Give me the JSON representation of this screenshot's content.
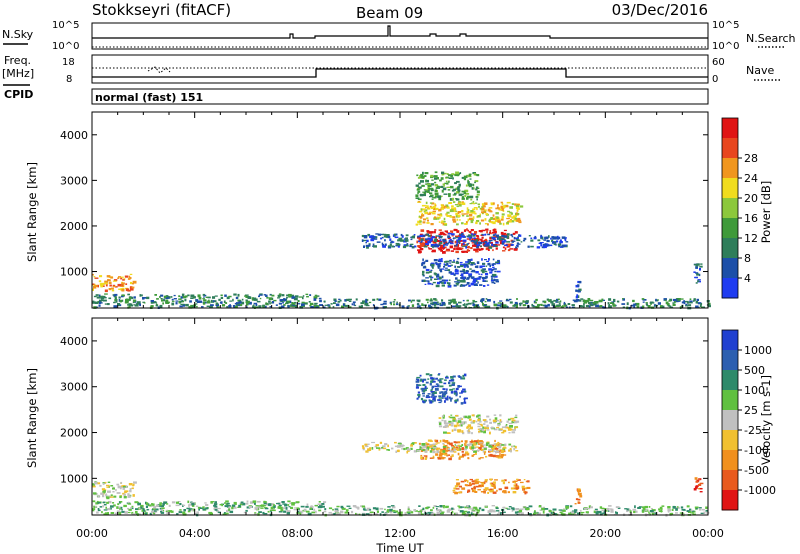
{
  "header": {
    "title": "Stokkseyri (fitACF)",
    "beam": "Beam 09",
    "date": "03/Dec/2016"
  },
  "top_panels": {
    "nsky_label": "N.Sky",
    "nsky_ticks": [
      "10^5",
      "10^0"
    ],
    "nsearch_label": "N.Search",
    "nsearch_ticks": [
      "10^5",
      "10^0"
    ],
    "freq_label": "Freq.",
    "freq_unit": "[MHz]",
    "freq_ticks": [
      "18",
      "8"
    ],
    "nave_label": "Nave",
    "nave_ticks": [
      "60",
      "0"
    ],
    "cpid_label": "CPID",
    "cpid_text": "normal (fast) 151"
  },
  "chart_data": [
    {
      "type": "heatmap",
      "name": "power",
      "ylabel": "Slant Range [km]",
      "y_ticks": [
        "1000",
        "2000",
        "3000",
        "4000"
      ],
      "ylim": [
        200,
        4500
      ],
      "xlim": [
        0,
        24
      ],
      "colorbar": {
        "label": "Power [dB]",
        "ticks": [
          "4",
          "8",
          "12",
          "16",
          "20",
          "24",
          "28"
        ],
        "colors": [
          "#1f3cf0",
          "#1c4fa8",
          "#2e7d5a",
          "#3f9a3a",
          "#8cc83c",
          "#f0dc1e",
          "#f0961e",
          "#e8461e",
          "#e01414"
        ]
      },
      "echo_regions": [
        {
          "t0": 0.0,
          "t1": 1.6,
          "r0": 600,
          "r1": 950,
          "level": 6
        },
        {
          "t0": 0.0,
          "t1": 9.0,
          "r0": 230,
          "r1": 520,
          "level": 2
        },
        {
          "t0": 9.0,
          "t1": 24.0,
          "r0": 220,
          "r1": 420,
          "level": 2
        },
        {
          "t0": 12.6,
          "t1": 16.5,
          "r0": 1450,
          "r1": 1950,
          "level": 8
        },
        {
          "t0": 12.6,
          "t1": 16.7,
          "r0": 2050,
          "r1": 2550,
          "level": 5
        },
        {
          "t0": 12.6,
          "t1": 15.0,
          "r0": 2600,
          "r1": 3200,
          "level": 3
        },
        {
          "t0": 10.5,
          "t1": 18.5,
          "r0": 1550,
          "r1": 1850,
          "level": 1
        },
        {
          "t0": 12.8,
          "t1": 15.8,
          "r0": 700,
          "r1": 1300,
          "level": 1
        },
        {
          "t0": 18.8,
          "t1": 19.0,
          "r0": 400,
          "r1": 800,
          "level": 1
        },
        {
          "t0": 23.4,
          "t1": 23.7,
          "r0": 700,
          "r1": 1200,
          "level": 1
        }
      ]
    },
    {
      "type": "heatmap",
      "name": "velocity",
      "xlabel": "Time UT",
      "ylabel": "Slant Range [km]",
      "x_ticks": [
        "00:00",
        "04:00",
        "08:00",
        "12:00",
        "16:00",
        "20:00",
        "00:00"
      ],
      "y_ticks": [
        "1000",
        "2000",
        "3000",
        "4000"
      ],
      "ylim": [
        200,
        4500
      ],
      "xlim": [
        0,
        24
      ],
      "colorbar": {
        "label": "Velocity [m s-1]",
        "ticks": [
          "1000",
          "500",
          "100",
          "25",
          "-25",
          "-100",
          "-500",
          "-1000"
        ],
        "colors": [
          "#2040d0",
          "#2c5fb0",
          "#2e8a6a",
          "#60c040",
          "#c0c0c0",
          "#f0c030",
          "#f0901e",
          "#e85a1e",
          "#e01414"
        ]
      },
      "echo_regions": [
        {
          "t0": 0.0,
          "t1": 1.6,
          "r0": 600,
          "r1": 950,
          "level": 4
        },
        {
          "t0": 0.0,
          "t1": 9.0,
          "r0": 230,
          "r1": 520,
          "level": 3
        },
        {
          "t0": 9.0,
          "t1": 24.0,
          "r0": 220,
          "r1": 420,
          "level": 3
        },
        {
          "t0": 12.7,
          "t1": 16.0,
          "r0": 1450,
          "r1": 1850,
          "level": 6
        },
        {
          "t0": 13.5,
          "t1": 16.5,
          "r0": 2000,
          "r1": 2400,
          "level": 4
        },
        {
          "t0": 12.6,
          "t1": 14.5,
          "r0": 2650,
          "r1": 3300,
          "level": 1
        },
        {
          "t0": 10.5,
          "t1": 16.5,
          "r0": 1600,
          "r1": 1800,
          "level": 4
        },
        {
          "t0": 14.0,
          "t1": 17.0,
          "r0": 700,
          "r1": 1000,
          "level": 6
        },
        {
          "t0": 18.8,
          "t1": 19.0,
          "r0": 450,
          "r1": 800,
          "level": 6
        },
        {
          "t0": 23.4,
          "t1": 23.7,
          "r0": 700,
          "r1": 1100,
          "level": 7
        }
      ]
    }
  ]
}
